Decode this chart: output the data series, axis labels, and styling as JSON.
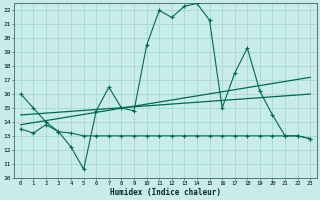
{
  "bg_color": "#c8ece8",
  "grid_color": "#a8d8d0",
  "line_color": "#006858",
  "xlabel": "Humidex (Indice chaleur)",
  "xlim": [
    -0.5,
    23.5
  ],
  "ylim": [
    10,
    22.5
  ],
  "xticks": [
    0,
    1,
    2,
    3,
    4,
    5,
    6,
    7,
    8,
    9,
    10,
    11,
    12,
    13,
    14,
    15,
    16,
    17,
    18,
    19,
    20,
    21,
    22,
    23
  ],
  "yticks": [
    10,
    11,
    12,
    13,
    14,
    15,
    16,
    17,
    18,
    19,
    20,
    21,
    22
  ],
  "line1_x": [
    0,
    1,
    2,
    3,
    4,
    5,
    6,
    7,
    8,
    9,
    10,
    11,
    12,
    13,
    14,
    15,
    16,
    17,
    18,
    19,
    20,
    21,
    22,
    23
  ],
  "line1_y": [
    16.0,
    15.0,
    14.0,
    13.3,
    12.2,
    10.6,
    14.8,
    16.5,
    15.0,
    14.8,
    19.5,
    22.0,
    21.5,
    22.3,
    22.5,
    21.3,
    15.0,
    17.5,
    19.3,
    16.2,
    14.5,
    13.0,
    13.0,
    12.8
  ],
  "line2_x": [
    0,
    1,
    2,
    3,
    4,
    5,
    6,
    7,
    8,
    9,
    10,
    11,
    12,
    13,
    14,
    15,
    16,
    17,
    18,
    19,
    20,
    21,
    22,
    23
  ],
  "line2_y": [
    13.5,
    13.2,
    13.8,
    13.3,
    13.2,
    13.0,
    13.0,
    13.0,
    13.0,
    13.0,
    13.0,
    13.0,
    13.0,
    13.0,
    13.0,
    13.0,
    13.0,
    13.0,
    13.0,
    13.0,
    13.0,
    13.0,
    13.0,
    12.8
  ],
  "line3_x": [
    0,
    23
  ],
  "line3_y": [
    13.8,
    17.2
  ],
  "line4_x": [
    0,
    23
  ],
  "line4_y": [
    14.5,
    16.0
  ]
}
